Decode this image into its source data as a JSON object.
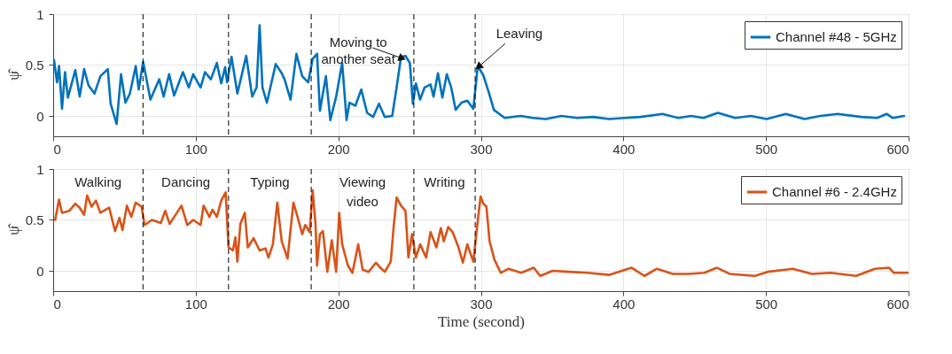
{
  "chart_data": [
    {
      "type": "line",
      "ylabel": "ψ̂",
      "xlim": [
        0,
        600
      ],
      "ylim": [
        -0.2,
        1
      ],
      "xticks": [
        0,
        100,
        200,
        300,
        400,
        500,
        600
      ],
      "yticks": [
        0,
        0.5,
        1
      ],
      "grid": true,
      "legend": "top right",
      "line_style": "solid",
      "series": [
        {
          "name": "Channel #48 - 5GHz",
          "color": "#0072bd",
          "x": [
            0.6,
            2.7,
            4.1,
            6.2,
            8.3,
            10.3,
            15.5,
            18.6,
            21.7,
            24.8,
            29,
            33.1,
            38.3,
            40.3,
            44.5,
            47.6,
            50.7,
            53.8,
            57.9,
            60,
            63.1,
            68.2,
            74.4,
            77.5,
            81.3,
            84.8,
            91,
            95.1,
            98.2,
            103.4,
            106.5,
            110.6,
            114.8,
            117.9,
            120.6,
            122,
            125.1,
            129.2,
            135.4,
            139.6,
            142.7,
            144.8,
            146.8,
            149.9,
            156.1,
            160.3,
            162.3,
            166.5,
            170.6,
            174.7,
            178.9,
            182,
            185.1,
            187.1,
            191.3,
            194.4,
            198.5,
            202.7,
            205.8,
            207.8,
            212,
            216.1,
            220.2,
            224.4,
            228.5,
            232.6,
            237.8,
            240.9,
            244,
            247.1,
            250.2,
            252.3,
            254.4,
            257.4,
            260.5,
            264.7,
            266.8,
            269.9,
            273,
            276.1,
            279.2,
            282.3,
            286.4,
            290.5,
            294.7,
            297.8,
            301.7,
            303.5,
            305.8,
            309.1,
            316.7,
            327.8,
            336.6,
            345.5,
            356.5,
            367.6,
            378.7,
            389.8,
            400.9,
            411.9,
            427.4,
            438.5,
            447.4,
            456.2,
            466.2,
            478.4,
            489.4,
            500.5,
            513.8,
            527.1,
            538.1,
            550.3,
            566.9,
            578,
            584.6,
            589,
            596.8
          ],
          "values": [
            0.55,
            0.33,
            0.49,
            0.07,
            0.43,
            0.18,
            0.45,
            0.19,
            0.46,
            0.3,
            0.22,
            0.39,
            0.46,
            0.12,
            -0.08,
            0.41,
            0.13,
            0.22,
            0.49,
            0.26,
            0.53,
            0.16,
            0.36,
            0.19,
            0.41,
            0.2,
            0.43,
            0.28,
            0.41,
            0.28,
            0.43,
            0.36,
            0.52,
            0.32,
            0.48,
            0.33,
            0.58,
            0.22,
            0.59,
            0.19,
            0.28,
            0.89,
            0.28,
            0.13,
            0.51,
            0.42,
            0.36,
            0.16,
            0.61,
            0.39,
            0.33,
            0.56,
            0.61,
            0.05,
            0.39,
            -0.04,
            0.19,
            0.52,
            -0.04,
            0.13,
            0.1,
            0.26,
            0.03,
            -0.01,
            0.12,
            -0.01,
            0,
            0.28,
            0.58,
            0.59,
            0.52,
            0.12,
            0.32,
            0.16,
            0.28,
            0.31,
            0.19,
            0.42,
            0.18,
            0.41,
            0.28,
            0.06,
            0.13,
            0.15,
            0.07,
            0.49,
            0.4,
            0.32,
            0.22,
            0.06,
            -0.02,
            0,
            -0.02,
            -0.03,
            0,
            -0.02,
            -0.01,
            -0.03,
            -0.02,
            -0.01,
            0.02,
            -0.02,
            0,
            -0.02,
            0.03,
            -0.02,
            0,
            -0.03,
            0.02,
            -0.03,
            0,
            0.02,
            -0.01,
            -0.02,
            0.02,
            -0.02,
            0
          ]
        }
      ],
      "ref_lines": [
        {
          "axis": "x",
          "value": 63,
          "color": "#000000",
          "line_style": "dashed"
        },
        {
          "axis": "x",
          "value": 123,
          "color": "#000000",
          "line_style": "dashed"
        },
        {
          "axis": "x",
          "value": 181,
          "color": "#000000",
          "line_style": "dashed"
        },
        {
          "axis": "x",
          "value": 253,
          "color": "#000000",
          "line_style": "dashed"
        },
        {
          "axis": "x",
          "value": 296,
          "color": "#000000",
          "line_style": "dashed"
        }
      ],
      "annotations": [
        {
          "text": "Moving to\nanother seat",
          "x": 244,
          "y": 0.57
        },
        {
          "text": "Leaving",
          "x": 299,
          "y": 0.49
        }
      ]
    },
    {
      "type": "line",
      "xlabel": "Time (second)",
      "ylabel": "ψ̂",
      "xlim": [
        0,
        600
      ],
      "ylim": [
        -0.2,
        1
      ],
      "xticks": [
        0,
        100,
        200,
        300,
        400,
        500,
        600
      ],
      "yticks": [
        0,
        0.5,
        1
      ],
      "grid": true,
      "legend": "top right",
      "line_style": "solid",
      "series": [
        {
          "name": "Channel #6 - 2.4GHz",
          "color": "#d95319",
          "x": [
            1.4,
            4.1,
            6.2,
            11.4,
            15.5,
            18.6,
            21.7,
            23.8,
            26.9,
            30,
            33.1,
            39.3,
            43.4,
            46.5,
            48.6,
            51.7,
            54.8,
            57.9,
            62,
            64.1,
            69.3,
            75.5,
            78.6,
            81.7,
            90,
            94.1,
            98.2,
            103.4,
            105.5,
            109.6,
            111.7,
            114.8,
            117.9,
            121,
            123,
            126.1,
            127.8,
            129.2,
            131.3,
            134.4,
            136.5,
            140.6,
            144.8,
            148.9,
            151,
            154.1,
            157.2,
            160.3,
            164.4,
            168.5,
            171.6,
            174.7,
            176.8,
            179.9,
            182,
            184,
            185.1,
            187.1,
            189.2,
            192.3,
            195.4,
            198.5,
            200.6,
            202.7,
            206.8,
            209.9,
            214,
            217.1,
            221.3,
            226.4,
            229.5,
            232.6,
            236.8,
            238.8,
            240.9,
            244,
            247.1,
            249.2,
            251.7,
            254.4,
            257.4,
            261.6,
            264.7,
            268.8,
            271.9,
            274,
            277.1,
            280.2,
            284.3,
            287.4,
            290.5,
            294.7,
            297.8,
            299.8,
            301.7,
            303.9,
            306.1,
            309.5,
            313.9,
            319.4,
            328.3,
            337.1,
            341.6,
            350.4,
            361.5,
            374.8,
            390.3,
            405.8,
            414.7,
            423.5,
            434.6,
            445.7,
            456.7,
            465.6,
            474.5,
            492.2,
            501.1,
            518.8,
            532.1,
            545.4,
            563.1,
            576.4,
            586.4,
            589.7,
            599.7
          ],
          "values": [
            0.5,
            0.7,
            0.57,
            0.59,
            0.66,
            0.62,
            0.55,
            0.74,
            0.63,
            0.69,
            0.57,
            0.62,
            0.39,
            0.52,
            0.4,
            0.64,
            0.53,
            0.67,
            0.63,
            0.45,
            0.5,
            0.47,
            0.59,
            0.46,
            0.64,
            0.45,
            0.5,
            0.45,
            0.64,
            0.53,
            0.6,
            0.53,
            0.69,
            0.77,
            0.23,
            0.2,
            0.33,
            0.09,
            0.46,
            0.57,
            0.23,
            0.32,
            0.2,
            0.22,
            0.13,
            0.26,
            0.67,
            0.29,
            0.12,
            0.67,
            0.52,
            0.36,
            0.45,
            0.38,
            0.79,
            0.46,
            0.05,
            0.36,
            0.39,
            -0.01,
            0.3,
            -0.01,
            0.57,
            0.26,
            0.05,
            -0.02,
            0.26,
            0.01,
            -0.01,
            0.08,
            0.03,
            -0.01,
            0.09,
            0.43,
            0.72,
            0.64,
            0.59,
            0.13,
            0.36,
            0.13,
            0.26,
            0.13,
            0.38,
            0.23,
            0.42,
            0.29,
            0.43,
            0.38,
            0.23,
            0.08,
            0.26,
            0.09,
            0.49,
            0.73,
            0.66,
            0.63,
            0.29,
            0.11,
            -0.02,
            0.02,
            -0.02,
            0.03,
            -0.05,
            0,
            -0.01,
            -0.02,
            -0.04,
            0.03,
            -0.05,
            0.02,
            -0.03,
            -0.03,
            -0.02,
            0.03,
            -0.03,
            -0.05,
            -0.01,
            0.02,
            -0.03,
            -0.02,
            -0.05,
            0.02,
            0.03,
            -0.02,
            -0.02
          ]
        }
      ],
      "ref_lines": [
        {
          "axis": "x",
          "value": 63,
          "color": "#000000",
          "line_style": "dashed"
        },
        {
          "axis": "x",
          "value": 123,
          "color": "#000000",
          "line_style": "dashed"
        },
        {
          "axis": "x",
          "value": 181,
          "color": "#000000",
          "line_style": "dashed"
        },
        {
          "axis": "x",
          "value": 253,
          "color": "#000000",
          "line_style": "dashed"
        },
        {
          "axis": "x",
          "value": 296,
          "color": "#000000",
          "line_style": "dashed"
        }
      ],
      "annotations": [
        "Walking",
        "Dancing",
        "Typing",
        "Viewing\nvideo",
        "Writing"
      ]
    }
  ]
}
